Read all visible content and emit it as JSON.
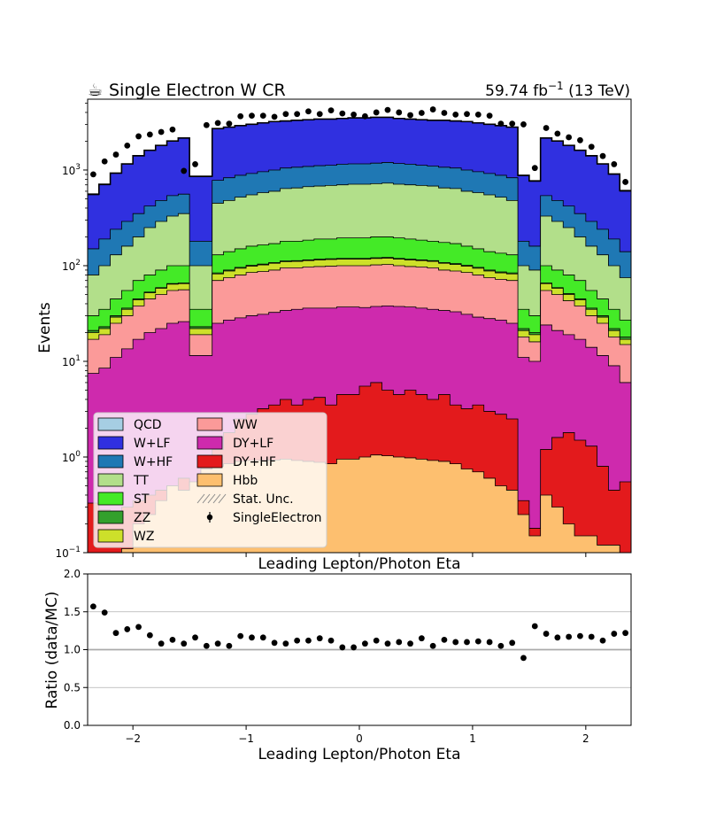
{
  "header": {
    "title_icon": "coffee-icon",
    "title_icon_glyph": "☕",
    "title": "Single Electron W CR",
    "lumi_prefix": "59.74 fb",
    "lumi_exp": "−1",
    "lumi_suffix": " (13 TeV)"
  },
  "chart_data": [
    {
      "type": "area",
      "style": "stacked-step-histogram",
      "xlabel": "Leading Lepton/Photon Eta",
      "ylabel": "Events",
      "xlim": [
        -2.4,
        2.4
      ],
      "ylim": [
        0.1,
        5500
      ],
      "yscale": "log",
      "yticks": [
        0.1,
        1,
        10,
        100,
        1000
      ],
      "ytick_labels": [
        {
          "base": "10",
          "exp": "−1"
        },
        {
          "base": "10",
          "exp": "0"
        },
        {
          "base": "10",
          "exp": "1"
        },
        {
          "base": "10",
          "exp": "2"
        },
        {
          "base": "10",
          "exp": "3"
        }
      ],
      "bin_edges": [
        -2.4,
        -2.3,
        -2.2,
        -2.1,
        -2.0,
        -1.9,
        -1.8,
        -1.7,
        -1.6,
        -1.5,
        -1.4,
        -1.3,
        -1.2,
        -1.1,
        -1.0,
        -0.9,
        -0.8,
        -0.7,
        -0.6,
        -0.5,
        -0.4,
        -0.3,
        -0.2,
        -0.1,
        0.0,
        0.1,
        0.2,
        0.3,
        0.4,
        0.5,
        0.6,
        0.7,
        0.8,
        0.9,
        1.0,
        1.1,
        1.2,
        1.3,
        1.4,
        1.5,
        1.6,
        1.7,
        1.8,
        1.9,
        2.0,
        2.1,
        2.2,
        2.3,
        2.4
      ],
      "stack_order": [
        "Hbb",
        "DY+HF",
        "DY+LF",
        "WW",
        "WZ",
        "ZZ",
        "ST",
        "TT",
        "W+HF",
        "W+LF",
        "QCD"
      ],
      "cumulative_tops": {
        "Hbb": [
          0.1,
          0.1,
          0.1,
          0.11,
          0.2,
          0.25,
          0.35,
          0.5,
          0.45,
          0.55,
          0.75,
          0.8,
          0.85,
          0.9,
          0.92,
          0.92,
          0.93,
          0.95,
          0.92,
          0.9,
          0.88,
          0.85,
          0.95,
          0.95,
          1.0,
          1.05,
          1.03,
          1.0,
          0.98,
          0.95,
          0.92,
          0.9,
          0.85,
          0.75,
          0.7,
          0.6,
          0.5,
          0.45,
          0.25,
          0.15,
          0.4,
          0.3,
          0.2,
          0.15,
          0.15,
          0.12,
          0.12,
          0.1
        ],
        "DY+HF": [
          0.33,
          0.28,
          0.25,
          0.3,
          0.35,
          0.4,
          0.45,
          0.5,
          0.6,
          0.5,
          0.9,
          1.2,
          1.8,
          2.5,
          2.8,
          3.2,
          3.5,
          4.0,
          3.5,
          4.0,
          4.2,
          3.5,
          4.5,
          4.5,
          5.5,
          6.0,
          5.0,
          4.5,
          5.0,
          4.5,
          4.0,
          4.5,
          3.5,
          3.2,
          3.5,
          3.0,
          2.8,
          2.5,
          0.35,
          0.18,
          1.2,
          1.6,
          1.8,
          1.5,
          1.3,
          0.8,
          0.45,
          0.55
        ],
        "DY+LF": [
          7.5,
          8.5,
          11.0,
          13.5,
          17.0,
          20.0,
          22.0,
          25.0,
          26.0,
          11.5,
          11.5,
          25.0,
          27.0,
          28.5,
          30.0,
          31.0,
          32.5,
          34.0,
          35.0,
          36.0,
          36.0,
          36.0,
          37.0,
          37.0,
          36.5,
          37.5,
          38.0,
          37.5,
          37.0,
          36.0,
          35.0,
          34.0,
          33.0,
          31.0,
          29.0,
          28.0,
          27.0,
          25.0,
          11.0,
          10.0,
          24.0,
          21.0,
          19.0,
          17.0,
          14.0,
          11.5,
          9.0,
          6.0
        ],
        "WW": [
          17.0,
          19.0,
          25.0,
          30.0,
          38.0,
          45.0,
          50.0,
          55.0,
          56.0,
          19.0,
          19.0,
          70.0,
          75.0,
          80.0,
          85.0,
          87.0,
          90.0,
          95.0,
          95.0,
          97.0,
          98.0,
          99.0,
          100.0,
          100.0,
          100.0,
          102.0,
          103.0,
          100.0,
          98.0,
          97.0,
          95.0,
          90.0,
          88.0,
          85.0,
          80.0,
          75.0,
          72.0,
          70.0,
          18.0,
          16.0,
          55.0,
          50.0,
          43.0,
          38.0,
          30.0,
          25.0,
          18.0,
          15.0
        ],
        "WZ": [
          20.0,
          22.0,
          29.0,
          35.0,
          44.0,
          52.0,
          58.0,
          64.0,
          65.0,
          22.0,
          22.0,
          82.0,
          88.0,
          94.0,
          99.0,
          102.0,
          106.0,
          110.0,
          111.0,
          113.0,
          115.0,
          116.0,
          117.0,
          117.0,
          117.0,
          119.0,
          120.0,
          117.0,
          115.0,
          113.0,
          111.0,
          106.0,
          103.0,
          99.0,
          94.0,
          88.0,
          84.0,
          82.0,
          21.0,
          19.0,
          65.0,
          58.0,
          50.0,
          44.0,
          35.0,
          29.0,
          21.0,
          17.0
        ],
        "ZZ": [
          21.0,
          23.0,
          30.0,
          36.0,
          45.0,
          53.0,
          59.0,
          65.0,
          66.0,
          23.0,
          23.0,
          84.0,
          90.0,
          96.0,
          101.0,
          104.0,
          108.0,
          112.0,
          113.0,
          115.0,
          117.0,
          118.0,
          119.0,
          119.0,
          119.0,
          121.0,
          122.0,
          119.0,
          117.0,
          115.0,
          113.0,
          108.0,
          105.0,
          101.0,
          96.0,
          90.0,
          86.0,
          84.0,
          22.0,
          20.0,
          66.0,
          59.0,
          51.0,
          45.0,
          36.0,
          30.0,
          22.0,
          18.0
        ],
        "ST": [
          30.0,
          35.0,
          45.0,
          55.0,
          70.0,
          80.0,
          90.0,
          100.0,
          100.0,
          35.0,
          35.0,
          130.0,
          140.0,
          150.0,
          160.0,
          165.0,
          170.0,
          180.0,
          180.0,
          185.0,
          190.0,
          190.0,
          195.0,
          195.0,
          195.0,
          200.0,
          200.0,
          195.0,
          190.0,
          185.0,
          180.0,
          175.0,
          170.0,
          160.0,
          150.0,
          140.0,
          135.0,
          130.0,
          35.0,
          30.0,
          100.0,
          90.0,
          80.0,
          70.0,
          55.0,
          45.0,
          35.0,
          27.0
        ],
        "TT": [
          80.0,
          100.0,
          130.0,
          160.0,
          200.0,
          250.0,
          290.0,
          330.0,
          350.0,
          100.0,
          100.0,
          450.0,
          480.0,
          520.0,
          550.0,
          580.0,
          600.0,
          640.0,
          650.0,
          670.0,
          680.0,
          690.0,
          700.0,
          710.0,
          710.0,
          720.0,
          730.0,
          710.0,
          700.0,
          690.0,
          680.0,
          650.0,
          640.0,
          600.0,
          580.0,
          550.0,
          520.0,
          480.0,
          100.0,
          90.0,
          330.0,
          290.0,
          250.0,
          200.0,
          160.0,
          130.0,
          100.0,
          75.0
        ],
        "W+HF": [
          150.0,
          190.0,
          240.0,
          290.0,
          350.0,
          420.0,
          480.0,
          540.0,
          560.0,
          180.0,
          180.0,
          780.0,
          830.0,
          880.0,
          920.0,
          960.0,
          1000.0,
          1050.0,
          1070.0,
          1090.0,
          1110.0,
          1120.0,
          1150.0,
          1160.0,
          1160.0,
          1180.0,
          1200.0,
          1170.0,
          1150.0,
          1120.0,
          1100.0,
          1070.0,
          1050.0,
          1000.0,
          960.0,
          920.0,
          880.0,
          830.0,
          180.0,
          160.0,
          540.0,
          480.0,
          420.0,
          350.0,
          290.0,
          240.0,
          190.0,
          140.0
        ],
        "W+LF": [
          550.0,
          700.0,
          920.0,
          1150.0,
          1400.0,
          1600.0,
          1800.0,
          2000.0,
          2150.0,
          850.0,
          850.0,
          2700.0,
          2800.0,
          2900.0,
          3000.0,
          3100.0,
          3200.0,
          3250.0,
          3300.0,
          3350.0,
          3400.0,
          3400.0,
          3450.0,
          3500.0,
          3500.0,
          3550.0,
          3550.0,
          3450.0,
          3400.0,
          3350.0,
          3300.0,
          3300.0,
          3250.0,
          3200.0,
          3100.0,
          3000.0,
          2900.0,
          2800.0,
          870.0,
          760.0,
          2150.0,
          2000.0,
          1800.0,
          1600.0,
          1400.0,
          1150.0,
          900.0,
          600.0
        ],
        "QCD": [
          560.0,
          710.0,
          930.0,
          1160.0,
          1410.0,
          1610.0,
          1810.0,
          2010.0,
          2160.0,
          860.0,
          860.0,
          2710.0,
          2810.0,
          2910.0,
          3010.0,
          3110.0,
          3210.0,
          3260.0,
          3310.0,
          3360.0,
          3410.0,
          3410.0,
          3460.0,
          3510.0,
          3510.0,
          3560.0,
          3560.0,
          3460.0,
          3410.0,
          3360.0,
          3310.0,
          3310.0,
          3260.0,
          3210.0,
          3110.0,
          3010.0,
          2910.0,
          2810.0,
          880.0,
          770.0,
          2160.0,
          2010.0,
          1810.0,
          1610.0,
          1410.0,
          1160.0,
          910.0,
          610.0
        ]
      },
      "series": [
        {
          "name": "QCD",
          "color": "#a6cee3"
        },
        {
          "name": "W+LF",
          "color": "#3030e0"
        },
        {
          "name": "W+HF",
          "color": "#1f78b4"
        },
        {
          "name": "TT",
          "color": "#b2df8a"
        },
        {
          "name": "ST",
          "color": "#44ea27"
        },
        {
          "name": "ZZ",
          "color": "#33a02c"
        },
        {
          "name": "WZ",
          "color": "#cde02a"
        },
        {
          "name": "WW",
          "color": "#fb9a99"
        },
        {
          "name": "DY+LF",
          "color": "#ce2aad"
        },
        {
          "name": "DY+HF",
          "color": "#e31a1c"
        },
        {
          "name": "Hbb",
          "color": "#fdbf6f"
        }
      ],
      "uncertainty_label": "Stat. Unc.",
      "data_series": {
        "name": "SingleElectron",
        "x": [
          -2.35,
          -2.25,
          -2.15,
          -2.05,
          -1.95,
          -1.85,
          -1.75,
          -1.65,
          -1.55,
          -1.45,
          -1.35,
          -1.25,
          -1.15,
          -1.05,
          -0.95,
          -0.85,
          -0.75,
          -0.65,
          -0.55,
          -0.45,
          -0.35,
          -0.25,
          -0.15,
          -0.05,
          0.05,
          0.15,
          0.25,
          0.35,
          0.45,
          0.55,
          0.65,
          0.75,
          0.85,
          0.95,
          1.05,
          1.15,
          1.25,
          1.35,
          1.45,
          1.55,
          1.65,
          1.75,
          1.85,
          1.95,
          2.05,
          2.15,
          2.25,
          2.35
        ],
        "values": [
          900,
          1230,
          1450,
          1800,
          2250,
          2350,
          2500,
          2650,
          980,
          1150,
          2950,
          3100,
          3050,
          3650,
          3700,
          3700,
          3600,
          3850,
          3850,
          4100,
          3850,
          4200,
          3900,
          3800,
          3650,
          4000,
          4250,
          4000,
          3750,
          3950,
          4300,
          3950,
          3800,
          3850,
          3800,
          3700,
          3050,
          3050,
          3000,
          1050,
          2750,
          2400,
          2200,
          2050,
          1750,
          1400,
          1150,
          750
        ]
      },
      "legend": {
        "placement": "lower-left",
        "columns": [
          [
            "QCD",
            "W+LF",
            "W+HF",
            "TT",
            "ST",
            "ZZ",
            "WZ"
          ],
          [
            "WW",
            "DY+LF",
            "DY+HF",
            "Hbb",
            "Stat. Unc.",
            "SingleElectron"
          ]
        ]
      }
    },
    {
      "type": "scatter",
      "style": "ratio-panel",
      "xlabel": "Leading Lepton/Photon Eta",
      "ylabel": "Ratio (data/MC)",
      "xlim": [
        -2.4,
        2.4
      ],
      "ylim": [
        0.0,
        2.0
      ],
      "xticks": [
        -2,
        -1,
        0,
        1,
        2
      ],
      "xtick_labels": [
        "−2",
        "−1",
        "0",
        "1",
        "2"
      ],
      "yticks": [
        0.0,
        0.5,
        1.0,
        1.5,
        2.0
      ],
      "ytick_labels": [
        "0.0",
        "0.5",
        "1.0",
        "1.5",
        "2.0"
      ],
      "grid": true,
      "x": [
        -2.35,
        -2.25,
        -2.15,
        -2.05,
        -1.95,
        -1.85,
        -1.75,
        -1.65,
        -1.55,
        -1.45,
        -1.35,
        -1.25,
        -1.15,
        -1.05,
        -0.95,
        -0.85,
        -0.75,
        -0.65,
        -0.55,
        -0.45,
        -0.35,
        -0.25,
        -0.15,
        -0.05,
        0.05,
        0.15,
        0.25,
        0.35,
        0.45,
        0.55,
        0.65,
        0.75,
        0.85,
        0.95,
        1.05,
        1.15,
        1.25,
        1.35,
        1.45,
        1.55,
        1.65,
        1.75,
        1.85,
        1.95,
        2.05,
        2.15,
        2.25,
        2.35
      ],
      "values": [
        1.57,
        1.49,
        1.22,
        1.27,
        1.3,
        1.19,
        1.08,
        1.13,
        1.08,
        1.16,
        1.05,
        1.08,
        1.05,
        1.18,
        1.16,
        1.16,
        1.09,
        1.08,
        1.12,
        1.12,
        1.15,
        1.12,
        1.03,
        1.03,
        1.08,
        1.12,
        1.08,
        1.1,
        1.08,
        1.15,
        1.05,
        1.13,
        1.1,
        1.1,
        1.11,
        1.1,
        1.05,
        1.09,
        0.89,
        1.31,
        1.21,
        1.16,
        1.17,
        1.18,
        1.17,
        1.12,
        1.21,
        1.22
      ]
    }
  ]
}
